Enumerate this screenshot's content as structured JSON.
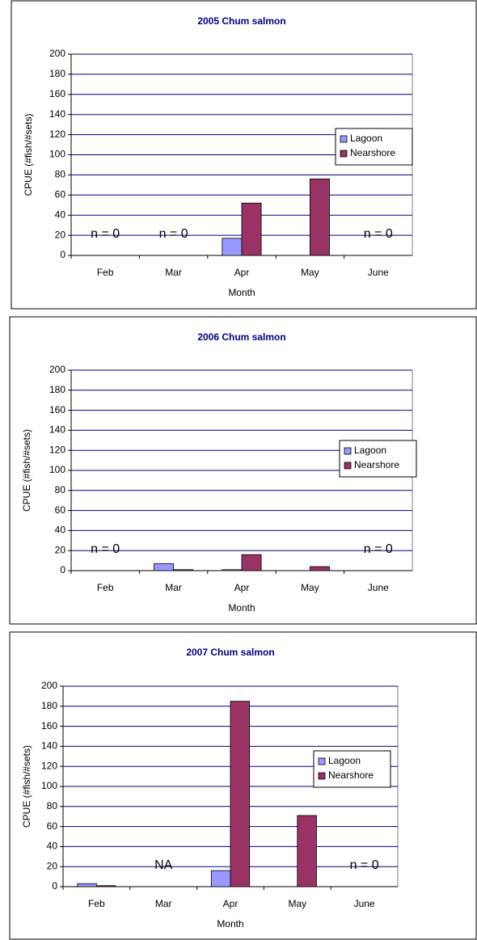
{
  "chart_data": [
    {
      "type": "bar",
      "title": "2005 Chum salmon",
      "xlabel": "Month",
      "ylabel": "CPUE (#fish/#sets)",
      "categories": [
        "Feb",
        "Mar",
        "Apr",
        "May",
        "June"
      ],
      "series": [
        {
          "name": "Lagoon",
          "color": "#9999ff",
          "values": [
            null,
            null,
            17,
            null,
            null
          ]
        },
        {
          "name": "Nearshore",
          "color": "#993366",
          "values": [
            null,
            null,
            52,
            76,
            null
          ]
        }
      ],
      "ylim": [
        0,
        200
      ],
      "yticks": [
        0,
        20,
        40,
        60,
        80,
        100,
        120,
        140,
        160,
        180,
        200
      ],
      "grid": true,
      "annotations": [
        {
          "text": "n = 0",
          "category": "Feb"
        },
        {
          "text": "n = 0",
          "category": "Mar"
        },
        {
          "text": "n = 0",
          "category": "June"
        }
      ]
    },
    {
      "type": "bar",
      "title": "2006 Chum salmon",
      "xlabel": "Month",
      "ylabel": "CPUE (#fish/#sets)",
      "categories": [
        "Feb",
        "Mar",
        "Apr",
        "May",
        "June"
      ],
      "series": [
        {
          "name": "Lagoon",
          "color": "#9999ff",
          "values": [
            null,
            7,
            1,
            null,
            null
          ]
        },
        {
          "name": "Nearshore",
          "color": "#993366",
          "values": [
            null,
            1,
            16,
            4,
            null
          ]
        }
      ],
      "ylim": [
        0,
        200
      ],
      "yticks": [
        0,
        20,
        40,
        60,
        80,
        100,
        120,
        140,
        160,
        180,
        200
      ],
      "grid": true,
      "annotations": [
        {
          "text": "n = 0",
          "category": "Feb"
        },
        {
          "text": "n = 0",
          "category": "June"
        }
      ]
    },
    {
      "type": "bar",
      "title": "2007 Chum salmon",
      "xlabel": "Month",
      "ylabel": "CPUE (#fish/#sets)",
      "categories": [
        "Feb",
        "Mar",
        "Apr",
        "May",
        "June"
      ],
      "series": [
        {
          "name": "Lagoon",
          "color": "#9999ff",
          "values": [
            3,
            null,
            16,
            null,
            null
          ]
        },
        {
          "name": "Nearshore",
          "color": "#993366",
          "values": [
            1,
            null,
            185,
            71,
            null
          ]
        }
      ],
      "ylim": [
        0,
        200
      ],
      "yticks": [
        0,
        20,
        40,
        60,
        80,
        100,
        120,
        140,
        160,
        180,
        200
      ],
      "grid": true,
      "annotations": [
        {
          "text": "NA",
          "category": "Mar"
        },
        {
          "text": "n = 0",
          "category": "June"
        }
      ]
    }
  ]
}
